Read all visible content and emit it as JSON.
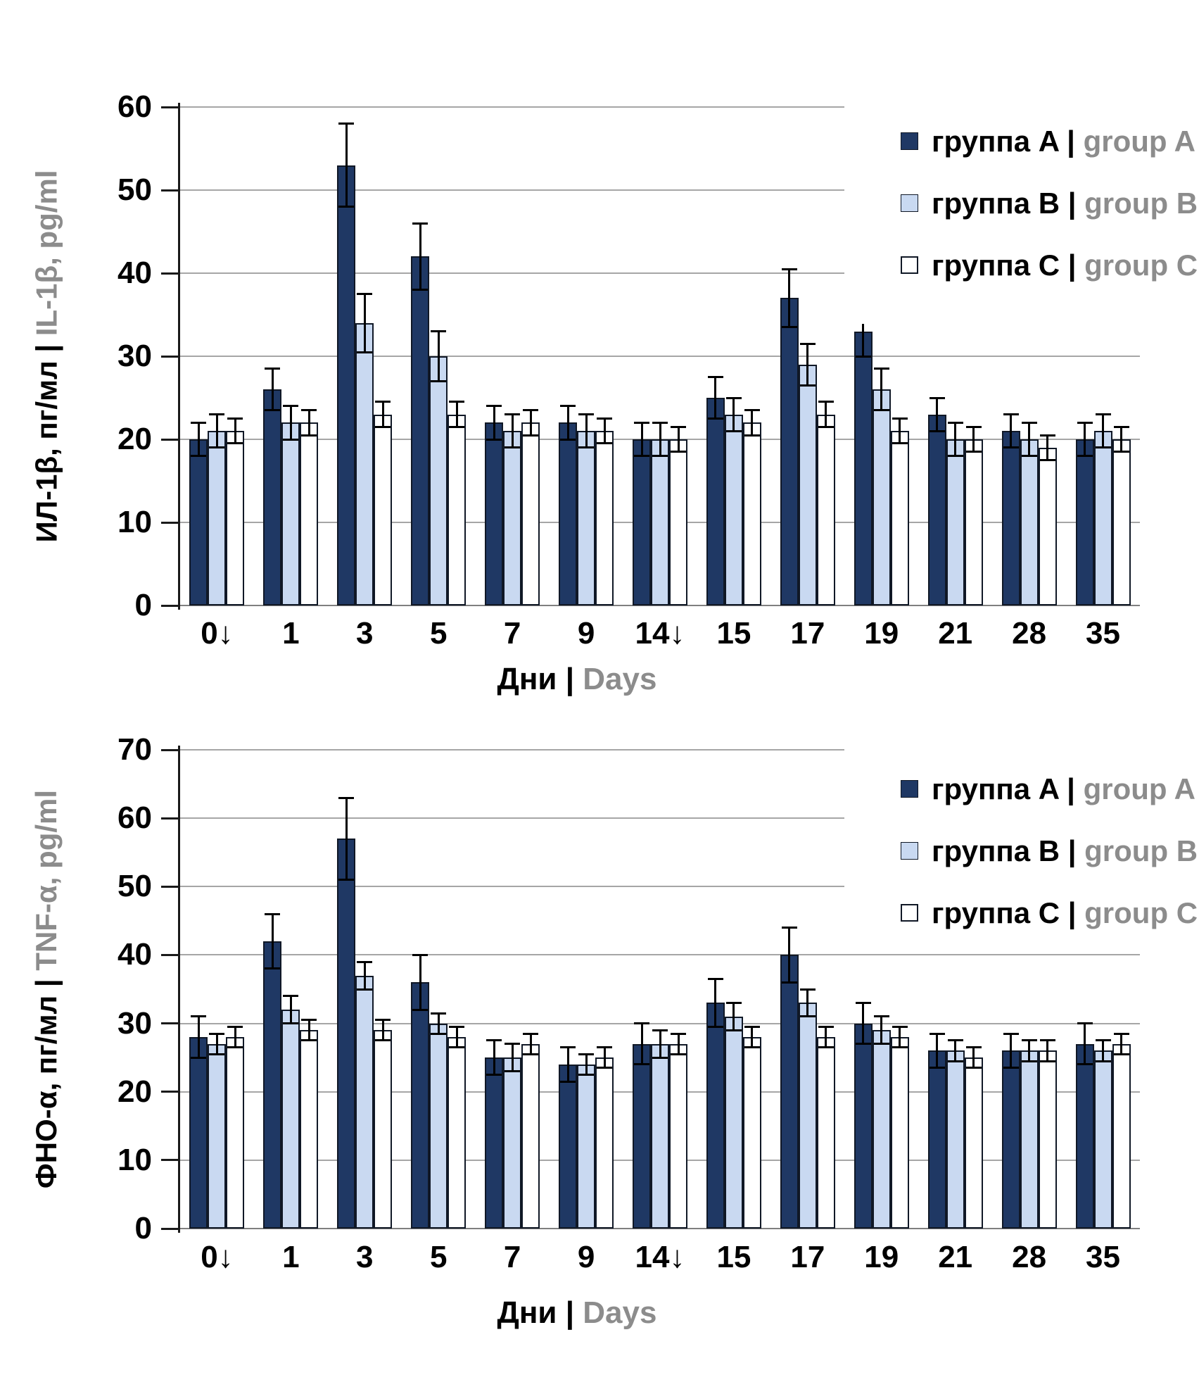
{
  "figure": {
    "background": "#ffffff",
    "separator": " | "
  },
  "colors": {
    "group_a_fill": "#1F3864",
    "group_b_fill": "#C9D9F1",
    "group_c_fill": "#FFFFFF",
    "bar_border": "#101826",
    "error_bar": "#000000",
    "gridline": "#A6A6A6",
    "axis": "#1a1a1a",
    "text_primary": "#000000",
    "text_secondary": "#8C8C8C"
  },
  "chart_data": [
    {
      "type": "bar",
      "ylabel_ru": "ИЛ-1β, пг/мл",
      "ylabel_en": "IL-1β, pg/ml",
      "xlabel_ru": "Дни",
      "xlabel_en": "Days",
      "ylim": [
        0,
        60
      ],
      "yticks": [
        0,
        10,
        20,
        30,
        40,
        50,
        60
      ],
      "grid": true,
      "legend_position": "top-right",
      "categories": [
        "0↓",
        "1",
        "3",
        "5",
        "7",
        "9",
        "14↓",
        "15",
        "17",
        "19",
        "21",
        "28",
        "35"
      ],
      "series": [
        {
          "name_ru": "группа A",
          "name_en": "group A",
          "values": [
            20,
            26,
            53,
            42,
            22,
            22,
            20,
            25,
            37,
            33,
            23,
            21,
            20
          ],
          "errors": [
            2,
            2.5,
            5,
            4,
            2,
            2,
            2,
            2.5,
            3.5,
            3,
            2,
            2,
            2
          ]
        },
        {
          "name_ru": "группа B",
          "name_en": "group B",
          "values": [
            21,
            22,
            34,
            30,
            21,
            21,
            20,
            23,
            29,
            26,
            20,
            20,
            21
          ],
          "errors": [
            2,
            2,
            3.5,
            3,
            2,
            2,
            2,
            2,
            2.5,
            2.5,
            2,
            2,
            2
          ]
        },
        {
          "name_ru": "группа C",
          "name_en": "group C",
          "values": [
            21,
            22,
            23,
            23,
            22,
            21,
            20,
            22,
            23,
            21,
            20,
            19,
            20
          ],
          "errors": [
            1.5,
            1.5,
            1.5,
            1.5,
            1.5,
            1.5,
            1.5,
            1.5,
            1.5,
            1.5,
            1.5,
            1.5,
            1.5
          ]
        }
      ]
    },
    {
      "type": "bar",
      "ylabel_ru": "ФНО-α, пг/мл",
      "ylabel_en": "TNF-α, pg/ml",
      "xlabel_ru": "Дни",
      "xlabel_en": "Days",
      "ylim": [
        0,
        70
      ],
      "yticks": [
        0,
        10,
        20,
        30,
        40,
        50,
        60,
        70
      ],
      "grid": true,
      "legend_position": "top-right",
      "categories": [
        "0↓",
        "1",
        "3",
        "5",
        "7",
        "9",
        "14↓",
        "15",
        "17",
        "19",
        "21",
        "28",
        "35"
      ],
      "series": [
        {
          "name_ru": "группа A",
          "name_en": "group A",
          "values": [
            28,
            42,
            57,
            36,
            25,
            24,
            27,
            33,
            40,
            30,
            26,
            26,
            27
          ],
          "errors": [
            3,
            4,
            6,
            4,
            2.5,
            2.5,
            3,
            3.5,
            4,
            3,
            2.5,
            2.5,
            3
          ]
        },
        {
          "name_ru": "группа B",
          "name_en": "group B",
          "values": [
            27,
            32,
            37,
            30,
            25,
            24,
            27,
            31,
            33,
            29,
            26,
            26,
            26
          ],
          "errors": [
            1.5,
            2,
            2,
            1.5,
            2,
            1.5,
            2,
            2,
            2,
            2,
            1.5,
            1.5,
            1.5
          ]
        },
        {
          "name_ru": "группа C",
          "name_en": "group C",
          "values": [
            28,
            29,
            29,
            28,
            27,
            25,
            27,
            28,
            28,
            28,
            25,
            26,
            27
          ],
          "errors": [
            1.5,
            1.5,
            1.5,
            1.5,
            1.5,
            1.5,
            1.5,
            1.5,
            1.5,
            1.5,
            1.5,
            1.5,
            1.5
          ]
        }
      ]
    }
  ]
}
